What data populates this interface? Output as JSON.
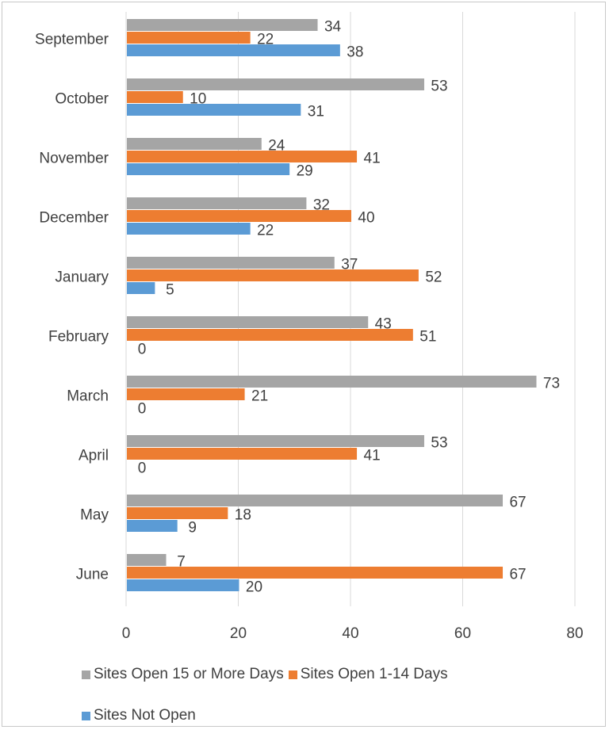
{
  "chart_data": {
    "type": "bar",
    "orientation": "horizontal",
    "categories": [
      "September",
      "October",
      "November",
      "December",
      "January",
      "February",
      "March",
      "April",
      "May",
      "June"
    ],
    "series": [
      {
        "name": "Sites Open 15 or More Days",
        "color": "#a5a5a5",
        "values": [
          34,
          53,
          24,
          32,
          37,
          43,
          73,
          53,
          67,
          7
        ]
      },
      {
        "name": "Sites Open 1-14 Days",
        "color": "#ed7d31",
        "values": [
          22,
          10,
          41,
          40,
          52,
          51,
          21,
          41,
          18,
          67
        ]
      },
      {
        "name": "Sites Not Open",
        "color": "#5b9bd5",
        "values": [
          38,
          31,
          29,
          22,
          5,
          0,
          0,
          0,
          9,
          20
        ]
      }
    ],
    "xlim": [
      0,
      80
    ],
    "xticks": [
      0,
      20,
      40,
      60,
      80
    ],
    "grid": true,
    "legend_position": "bottom",
    "data_labels": true
  }
}
